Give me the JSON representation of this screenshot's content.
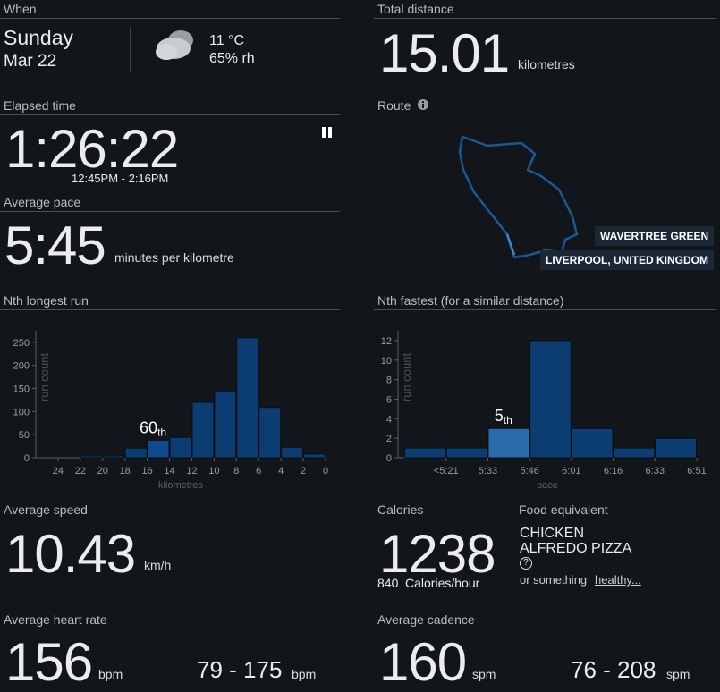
{
  "when": {
    "label": "When",
    "day": "Sunday",
    "date": "Mar 22",
    "temperature": "11 °C",
    "humidity": "65% rh"
  },
  "distance": {
    "label": "Total distance",
    "value": 15.01,
    "unit": "kilometres"
  },
  "elapsed": {
    "label": "Elapsed time",
    "value": "1:26:22",
    "range": "12:45PM - 2:16PM"
  },
  "route": {
    "label": "Route",
    "area": "WAVERTREE GREEN",
    "city": "LIVERPOOL, UNITED KINGDOM"
  },
  "pace": {
    "label": "Average pace",
    "value": "5:45",
    "unit": "minutes per kilometre"
  },
  "chart_data": [
    {
      "type": "histogram",
      "title": "Nth longest run",
      "y_label": "run count",
      "x_label": "kilometres",
      "bins": [
        24,
        22,
        20,
        18,
        16,
        14,
        12,
        10,
        8,
        6,
        4,
        2,
        0
      ],
      "values": [
        0,
        4,
        4,
        21,
        38,
        44,
        120,
        143,
        260,
        109,
        23,
        8
      ],
      "xlim": [
        26,
        0
      ],
      "xticks": [
        24,
        22,
        20,
        18,
        16,
        14,
        12,
        10,
        8,
        6,
        4,
        2,
        0
      ],
      "ylim": [
        0,
        275
      ],
      "yticks": [
        0,
        50,
        100,
        150,
        200,
        250
      ],
      "color": "#0b3d73",
      "highlight_index": 4,
      "highlight_color": "#0f4b8c",
      "rank": 60,
      "rank_suffix": "th"
    },
    {
      "type": "histogram",
      "title": "Nth fastest (for a similar distance)",
      "y_label": "run count",
      "x_label": "pace",
      "bins": [
        null,
        "<5:21",
        "5:33",
        "5:46",
        "6:01",
        "6:16",
        "6:33",
        "6:51"
      ],
      "values": [
        1,
        1,
        3,
        12,
        3,
        1,
        2
      ],
      "ylim": [
        0,
        13
      ],
      "yticks": [
        0,
        2,
        4,
        6,
        8,
        10,
        12
      ],
      "color": "#0b3d73",
      "highlight_index": 2,
      "highlight_color": "#2b6aab",
      "rank": 5,
      "rank_suffix": "th"
    }
  ],
  "speed": {
    "label": "Average speed",
    "value": 10.43,
    "unit": "km/h"
  },
  "calories": {
    "label": "Calories",
    "value": 1238,
    "rate": 840,
    "rate_unit": "Calories/hour"
  },
  "food": {
    "label": "Food equivalent",
    "lines": [
      "CHICKEN",
      "ALFREDO PIZZA"
    ],
    "help": "?",
    "alternative": "or something",
    "link": "healthy..."
  },
  "heart_rate": {
    "label": "Average heart rate",
    "value": 156,
    "unit": "bpm",
    "range": "79 - 175",
    "range_unit": "bpm"
  },
  "cadence": {
    "label": "Average cadence",
    "value": 160,
    "unit": "spm",
    "range": "76 - 208",
    "range_unit": "spm"
  }
}
